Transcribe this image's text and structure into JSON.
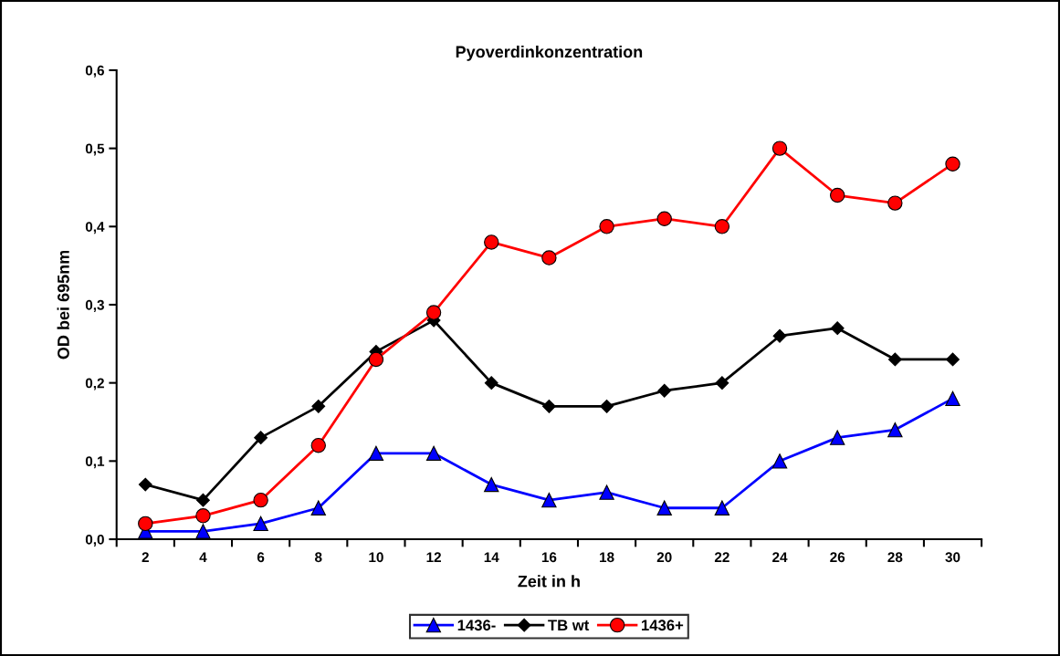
{
  "chart_data": {
    "type": "line",
    "title": "Pyoverdinkonzentration",
    "xlabel": "Zeit in h",
    "ylabel": "OD bei 695nm",
    "categories": [
      "2",
      "4",
      "6",
      "8",
      "10",
      "12",
      "14",
      "16",
      "18",
      "20",
      "22",
      "24",
      "26",
      "28",
      "30"
    ],
    "series": [
      {
        "name": "1436-",
        "color": "#0000ff",
        "marker": "triangle",
        "values": [
          0.01,
          0.01,
          0.02,
          0.04,
          0.11,
          0.11,
          0.07,
          0.05,
          0.06,
          0.04,
          0.04,
          0.1,
          0.13,
          0.14,
          0.18
        ]
      },
      {
        "name": "TB wt",
        "color": "#000000",
        "marker": "diamond",
        "values": [
          0.07,
          0.05,
          0.13,
          0.17,
          0.24,
          0.28,
          0.2,
          0.17,
          0.17,
          0.19,
          0.2,
          0.26,
          0.27,
          0.23,
          0.23
        ]
      },
      {
        "name": "1436+",
        "color": "#ff0000",
        "marker": "circle",
        "values": [
          0.02,
          0.03,
          0.05,
          0.12,
          0.23,
          0.29,
          0.38,
          0.36,
          0.4,
          0.41,
          0.4,
          0.5,
          0.44,
          0.43,
          0.48
        ]
      }
    ],
    "ylim": [
      0,
      0.6
    ],
    "yticks": [
      {
        "value": 0,
        "label": "0,0"
      },
      {
        "value": 0.1,
        "label": "0,1"
      },
      {
        "value": 0.2,
        "label": "0,2"
      },
      {
        "value": 0.3,
        "label": "0,3"
      },
      {
        "value": 0.4,
        "label": "0,4"
      },
      {
        "value": 0.5,
        "label": "0,5"
      },
      {
        "value": 0.6,
        "label": "0,6"
      }
    ],
    "grid": false,
    "legend": "bottom",
    "line_style": "solid"
  }
}
